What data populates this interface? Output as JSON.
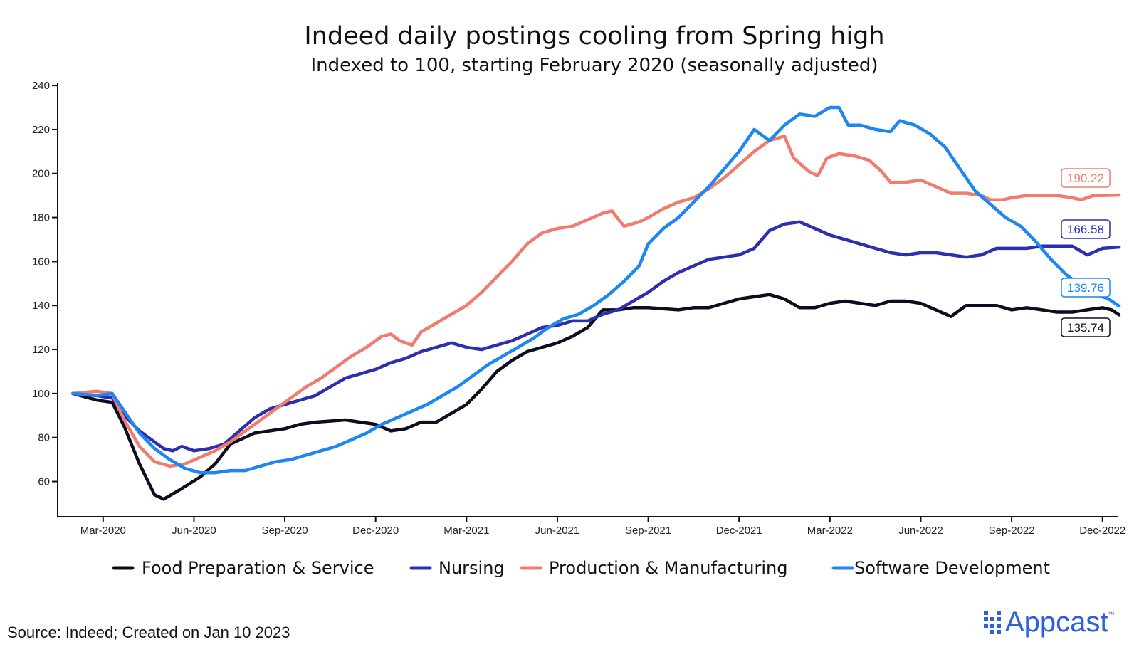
{
  "chart_data": {
    "type": "line",
    "title": "Indeed daily postings cooling from Spring high",
    "subtitle": "Indexed to 100, starting February 2020 (seasonally adjusted)",
    "xlabel": "",
    "ylabel": "",
    "xlim": [
      -0.5,
      34.5
    ],
    "ylim": [
      44,
      241
    ],
    "y_ticks": [
      60,
      80,
      100,
      120,
      140,
      160,
      180,
      200,
      220,
      240
    ],
    "x_ticks": [
      {
        "pos": 1,
        "label": "Mar-2020"
      },
      {
        "pos": 4,
        "label": "Jun-2020"
      },
      {
        "pos": 7,
        "label": "Sep-2020"
      },
      {
        "pos": 10,
        "label": "Dec-2020"
      },
      {
        "pos": 13,
        "label": "Mar-2021"
      },
      {
        "pos": 16,
        "label": "Jun-2021"
      },
      {
        "pos": 19,
        "label": "Sep-2021"
      },
      {
        "pos": 22,
        "label": "Dec-2021"
      },
      {
        "pos": 25,
        "label": "Mar-2022"
      },
      {
        "pos": 28,
        "label": "Jun-2022"
      },
      {
        "pos": 31,
        "label": "Sep-2022"
      },
      {
        "pos": 34,
        "label": "Dec-2022"
      }
    ],
    "grid": false,
    "legend": "bottom",
    "series": [
      {
        "name": "Food Preparation & Service",
        "color": "#0d0d1f",
        "end_value": "135.74",
        "points": [
          [
            0,
            100
          ],
          [
            0.8,
            97
          ],
          [
            1.3,
            96
          ],
          [
            1.7,
            85
          ],
          [
            2.2,
            68
          ],
          [
            2.7,
            54
          ],
          [
            3.0,
            52
          ],
          [
            3.5,
            56
          ],
          [
            4.2,
            62
          ],
          [
            4.7,
            68
          ],
          [
            5.2,
            77
          ],
          [
            6.0,
            82
          ],
          [
            7.0,
            84
          ],
          [
            7.5,
            86
          ],
          [
            8.0,
            87
          ],
          [
            9.0,
            88
          ],
          [
            10.0,
            86
          ],
          [
            10.5,
            83
          ],
          [
            11.0,
            84
          ],
          [
            11.5,
            87
          ],
          [
            12.0,
            87
          ],
          [
            12.5,
            91
          ],
          [
            13.0,
            95
          ],
          [
            13.5,
            102
          ],
          [
            14.0,
            110
          ],
          [
            14.5,
            115
          ],
          [
            15.0,
            119
          ],
          [
            15.5,
            121
          ],
          [
            16.0,
            123
          ],
          [
            16.5,
            126
          ],
          [
            17.0,
            130
          ],
          [
            17.5,
            138
          ],
          [
            18.0,
            138
          ],
          [
            18.5,
            139
          ],
          [
            19.0,
            139
          ],
          [
            20.0,
            138
          ],
          [
            20.5,
            139
          ],
          [
            21.0,
            139
          ],
          [
            21.5,
            141
          ],
          [
            22.0,
            143
          ],
          [
            22.5,
            144
          ],
          [
            23.0,
            145
          ],
          [
            23.5,
            143
          ],
          [
            24.0,
            139
          ],
          [
            24.5,
            139
          ],
          [
            25.0,
            141
          ],
          [
            25.5,
            142
          ],
          [
            26.0,
            141
          ],
          [
            26.5,
            140
          ],
          [
            27.0,
            142
          ],
          [
            27.5,
            142
          ],
          [
            28.0,
            141
          ],
          [
            28.5,
            138
          ],
          [
            29.0,
            135
          ],
          [
            29.5,
            140
          ],
          [
            30.0,
            140
          ],
          [
            30.5,
            140
          ],
          [
            31.0,
            138
          ],
          [
            31.5,
            139
          ],
          [
            32.0,
            138
          ],
          [
            32.5,
            137
          ],
          [
            33.0,
            137
          ],
          [
            33.5,
            138
          ],
          [
            34.0,
            139
          ],
          [
            34.3,
            138
          ],
          [
            34.55,
            135.74
          ]
        ]
      },
      {
        "name": "Nursing",
        "color": "#2d2fb0",
        "end_value": "166.58",
        "points": [
          [
            0,
            100
          ],
          [
            0.8,
            99
          ],
          [
            1.3,
            98
          ],
          [
            1.7,
            90
          ],
          [
            2.2,
            83
          ],
          [
            2.7,
            78
          ],
          [
            3.0,
            75
          ],
          [
            3.3,
            74
          ],
          [
            3.6,
            76
          ],
          [
            4.0,
            74
          ],
          [
            4.5,
            75
          ],
          [
            5.0,
            77
          ],
          [
            5.5,
            83
          ],
          [
            6.0,
            89
          ],
          [
            6.5,
            93
          ],
          [
            7.0,
            95
          ],
          [
            7.5,
            97
          ],
          [
            8.0,
            99
          ],
          [
            8.5,
            103
          ],
          [
            9.0,
            107
          ],
          [
            9.5,
            109
          ],
          [
            10.0,
            111
          ],
          [
            10.5,
            114
          ],
          [
            11.0,
            116
          ],
          [
            11.5,
            119
          ],
          [
            12.0,
            121
          ],
          [
            12.5,
            123
          ],
          [
            13.0,
            121
          ],
          [
            13.5,
            120
          ],
          [
            14.0,
            122
          ],
          [
            14.5,
            124
          ],
          [
            15.0,
            127
          ],
          [
            15.5,
            130
          ],
          [
            16.0,
            131
          ],
          [
            16.5,
            133
          ],
          [
            17.0,
            133
          ],
          [
            17.5,
            136
          ],
          [
            18.0,
            138
          ],
          [
            18.5,
            142
          ],
          [
            19.0,
            146
          ],
          [
            19.5,
            151
          ],
          [
            20.0,
            155
          ],
          [
            20.5,
            158
          ],
          [
            21.0,
            161
          ],
          [
            21.5,
            162
          ],
          [
            22.0,
            163
          ],
          [
            22.5,
            166
          ],
          [
            23.0,
            174
          ],
          [
            23.5,
            177
          ],
          [
            24.0,
            178
          ],
          [
            24.5,
            175
          ],
          [
            25.0,
            172
          ],
          [
            25.5,
            170
          ],
          [
            26.0,
            168
          ],
          [
            26.5,
            166
          ],
          [
            27.0,
            164
          ],
          [
            27.5,
            163
          ],
          [
            28.0,
            164
          ],
          [
            28.5,
            164
          ],
          [
            29.0,
            163
          ],
          [
            29.5,
            162
          ],
          [
            30.0,
            163
          ],
          [
            30.5,
            166
          ],
          [
            31.0,
            166
          ],
          [
            31.5,
            166
          ],
          [
            32.0,
            167
          ],
          [
            32.5,
            167
          ],
          [
            33.0,
            167
          ],
          [
            33.5,
            163
          ],
          [
            34.0,
            166
          ],
          [
            34.55,
            166.58
          ]
        ]
      },
      {
        "name": "Production & Manufacturing",
        "color": "#f07b6e",
        "end_value": "190.22",
        "points": [
          [
            0,
            100
          ],
          [
            0.8,
            101
          ],
          [
            1.3,
            100
          ],
          [
            1.7,
            88
          ],
          [
            2.2,
            76
          ],
          [
            2.7,
            69
          ],
          [
            3.2,
            67
          ],
          [
            3.7,
            68
          ],
          [
            4.2,
            71
          ],
          [
            4.7,
            74
          ],
          [
            5.2,
            78
          ],
          [
            5.7,
            83
          ],
          [
            6.2,
            88
          ],
          [
            6.7,
            93
          ],
          [
            7.2,
            98
          ],
          [
            7.7,
            103
          ],
          [
            8.2,
            107
          ],
          [
            8.7,
            112
          ],
          [
            9.2,
            117
          ],
          [
            9.7,
            121
          ],
          [
            10.2,
            126
          ],
          [
            10.5,
            127
          ],
          [
            10.8,
            124
          ],
          [
            11.2,
            122
          ],
          [
            11.5,
            128
          ],
          [
            12.0,
            132
          ],
          [
            12.5,
            136
          ],
          [
            13.0,
            140
          ],
          [
            13.5,
            146
          ],
          [
            14.0,
            153
          ],
          [
            14.5,
            160
          ],
          [
            15.0,
            168
          ],
          [
            15.5,
            173
          ],
          [
            16.0,
            175
          ],
          [
            16.5,
            176
          ],
          [
            17.0,
            179
          ],
          [
            17.5,
            182
          ],
          [
            17.8,
            183
          ],
          [
            18.2,
            176
          ],
          [
            18.7,
            178
          ],
          [
            19.0,
            180
          ],
          [
            19.5,
            184
          ],
          [
            20.0,
            187
          ],
          [
            20.5,
            189
          ],
          [
            21.0,
            193
          ],
          [
            21.5,
            198
          ],
          [
            22.0,
            204
          ],
          [
            22.5,
            210
          ],
          [
            23.0,
            215
          ],
          [
            23.5,
            217
          ],
          [
            23.8,
            207
          ],
          [
            24.3,
            201
          ],
          [
            24.6,
            199
          ],
          [
            24.9,
            207
          ],
          [
            25.3,
            209
          ],
          [
            25.8,
            208
          ],
          [
            26.3,
            206
          ],
          [
            26.7,
            201
          ],
          [
            27.0,
            196
          ],
          [
            27.5,
            196
          ],
          [
            28.0,
            197
          ],
          [
            28.5,
            194
          ],
          [
            29.0,
            191
          ],
          [
            29.5,
            191
          ],
          [
            30.0,
            190
          ],
          [
            30.3,
            188
          ],
          [
            30.7,
            188
          ],
          [
            31.0,
            189
          ],
          [
            31.5,
            190
          ],
          [
            32.0,
            190
          ],
          [
            32.5,
            190
          ],
          [
            33.0,
            189
          ],
          [
            33.3,
            188
          ],
          [
            33.7,
            190
          ],
          [
            34.0,
            190
          ],
          [
            34.55,
            190.22
          ]
        ]
      },
      {
        "name": "Software Development",
        "color": "#1c86f2",
        "end_value": "139.76",
        "points": [
          [
            0,
            100
          ],
          [
            0.8,
            99
          ],
          [
            1.3,
            100
          ],
          [
            1.7,
            92
          ],
          [
            2.2,
            82
          ],
          [
            2.7,
            75
          ],
          [
            3.2,
            70
          ],
          [
            3.7,
            66
          ],
          [
            4.2,
            64
          ],
          [
            4.7,
            64
          ],
          [
            5.2,
            65
          ],
          [
            5.7,
            65
          ],
          [
            6.2,
            67
          ],
          [
            6.7,
            69
          ],
          [
            7.2,
            70
          ],
          [
            7.7,
            72
          ],
          [
            8.2,
            74
          ],
          [
            8.7,
            76
          ],
          [
            9.2,
            79
          ],
          [
            9.7,
            82
          ],
          [
            10.2,
            86
          ],
          [
            10.7,
            89
          ],
          [
            11.2,
            92
          ],
          [
            11.7,
            95
          ],
          [
            12.2,
            99
          ],
          [
            12.7,
            103
          ],
          [
            13.2,
            108
          ],
          [
            13.7,
            113
          ],
          [
            14.2,
            117
          ],
          [
            14.7,
            121
          ],
          [
            15.2,
            125
          ],
          [
            15.7,
            130
          ],
          [
            16.2,
            134
          ],
          [
            16.7,
            136
          ],
          [
            17.2,
            140
          ],
          [
            17.7,
            145
          ],
          [
            18.2,
            151
          ],
          [
            18.7,
            158
          ],
          [
            19.0,
            168
          ],
          [
            19.5,
            175
          ],
          [
            20.0,
            180
          ],
          [
            20.5,
            187
          ],
          [
            21.0,
            194
          ],
          [
            21.5,
            202
          ],
          [
            22.0,
            210
          ],
          [
            22.5,
            220
          ],
          [
            23.0,
            215
          ],
          [
            23.5,
            222
          ],
          [
            24.0,
            227
          ],
          [
            24.5,
            226
          ],
          [
            25.0,
            230
          ],
          [
            25.3,
            230
          ],
          [
            25.6,
            222
          ],
          [
            26.0,
            222
          ],
          [
            26.5,
            220
          ],
          [
            27.0,
            219
          ],
          [
            27.3,
            224
          ],
          [
            27.8,
            222
          ],
          [
            28.3,
            218
          ],
          [
            28.8,
            212
          ],
          [
            29.3,
            202
          ],
          [
            29.8,
            192
          ],
          [
            30.3,
            186
          ],
          [
            30.8,
            180
          ],
          [
            31.3,
            176
          ],
          [
            31.8,
            169
          ],
          [
            32.3,
            161
          ],
          [
            32.8,
            154
          ],
          [
            33.3,
            149
          ],
          [
            33.8,
            145
          ],
          [
            34.2,
            143
          ],
          [
            34.55,
            139.76
          ]
        ]
      }
    ]
  },
  "source": "Source: Indeed; Created on Jan 10 2023",
  "logo": {
    "text": "Appcast",
    "tm": "™",
    "color": "#2f5fe0"
  }
}
